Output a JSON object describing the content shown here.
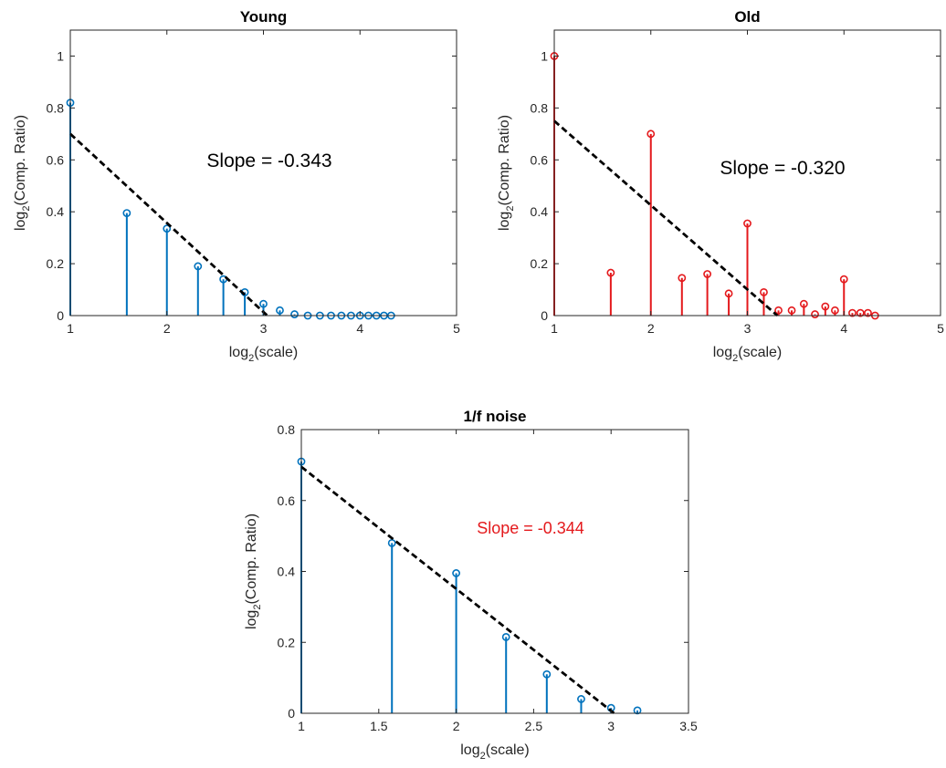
{
  "chart_data": [
    {
      "type": "stem",
      "title": "Young",
      "xlabel": {
        "base": "log",
        "sub": "2",
        "rest": "(scale)"
      },
      "ylabel": {
        "base": "log",
        "sub": "2",
        "rest": "(Comp. Ratio)"
      },
      "xlim": [
        1,
        5
      ],
      "ylim": [
        0,
        1.1
      ],
      "xticks": [
        1,
        2,
        3,
        4,
        5
      ],
      "yticks": [
        0,
        0.2,
        0.4,
        0.6,
        0.8,
        1
      ],
      "xtick_labels": [
        "1",
        "2",
        "3",
        "4",
        "5"
      ],
      "ytick_labels": [
        "0",
        "0.2",
        "0.4",
        "0.6",
        "0.8",
        "1"
      ],
      "annotation": "Slope = -0.343",
      "annotation_color": "#000000",
      "stem_color": "#0072BD",
      "fit_color": "#000000",
      "fit_line": {
        "x": [
          1,
          3.04
        ],
        "y": [
          0.7,
          0.0
        ]
      },
      "points": {
        "x": [
          1.0,
          1.585,
          2.0,
          2.322,
          2.585,
          2.807,
          3.0,
          3.17,
          3.322,
          3.459,
          3.585,
          3.7,
          3.807,
          3.907,
          4.0,
          4.087,
          4.17,
          4.248,
          4.322
        ],
        "y": [
          0.82,
          0.395,
          0.335,
          0.19,
          0.14,
          0.09,
          0.045,
          0.02,
          0.005,
          0.0,
          0.0,
          0.0,
          0.0,
          0.0,
          0.0,
          0.0,
          0.0,
          0.0,
          0.0
        ]
      }
    },
    {
      "type": "stem",
      "title": "Old",
      "xlabel": {
        "base": "log",
        "sub": "2",
        "rest": "(scale)"
      },
      "ylabel": {
        "base": "log",
        "sub": "2",
        "rest": "(Comp. Ratio)"
      },
      "xlim": [
        1,
        5
      ],
      "ylim": [
        0,
        1.1
      ],
      "xticks": [
        1,
        2,
        3,
        4,
        5
      ],
      "yticks": [
        0,
        0.2,
        0.4,
        0.6,
        0.8,
        1
      ],
      "xtick_labels": [
        "1",
        "2",
        "3",
        "4",
        "5"
      ],
      "ytick_labels": [
        "0",
        "0.2",
        "0.4",
        "0.6",
        "0.8",
        "1"
      ],
      "annotation": "Slope = -0.320",
      "annotation_color": "#000000",
      "stem_color": "#E4191C",
      "fit_color": "#000000",
      "fit_line": {
        "x": [
          1,
          3.31
        ],
        "y": [
          0.75,
          0.0
        ]
      },
      "points": {
        "x": [
          1.0,
          1.585,
          2.0,
          2.322,
          2.585,
          2.807,
          3.0,
          3.17,
          3.322,
          3.459,
          3.585,
          3.7,
          3.807,
          3.907,
          4.0,
          4.087,
          4.17,
          4.248,
          4.322
        ],
        "y": [
          1.0,
          0.165,
          0.7,
          0.145,
          0.16,
          0.085,
          0.355,
          0.09,
          0.02,
          0.02,
          0.045,
          0.005,
          0.035,
          0.02,
          0.14,
          0.01,
          0.01,
          0.01,
          0.0
        ]
      }
    },
    {
      "type": "stem",
      "title": "1/f noise",
      "xlabel": {
        "base": "log",
        "sub": "2",
        "rest": "(scale)"
      },
      "ylabel": {
        "base": "log",
        "sub": "2",
        "rest": "(Comp. Ratio)"
      },
      "xlim": [
        1,
        3.5
      ],
      "ylim": [
        0,
        0.8
      ],
      "xticks": [
        1,
        1.5,
        2,
        2.5,
        3,
        3.5
      ],
      "yticks": [
        0,
        0.2,
        0.4,
        0.6,
        0.8
      ],
      "xtick_labels": [
        "1",
        "1.5",
        "2",
        "2.5",
        "3",
        "3.5"
      ],
      "ytick_labels": [
        "0",
        "0.2",
        "0.4",
        "0.6",
        "0.8"
      ],
      "annotation": "Slope = -0.344",
      "annotation_color": "#E4191C",
      "stem_color": "#0072BD",
      "fit_color": "#000000",
      "fit_line": {
        "x": [
          1,
          3.02
        ],
        "y": [
          0.695,
          0.0
        ]
      },
      "points": {
        "x": [
          1.0,
          1.585,
          2.0,
          2.322,
          2.585,
          2.807,
          3.0,
          3.17
        ],
        "y": [
          0.71,
          0.48,
          0.395,
          0.215,
          0.11,
          0.04,
          0.015,
          0.008
        ]
      }
    }
  ]
}
